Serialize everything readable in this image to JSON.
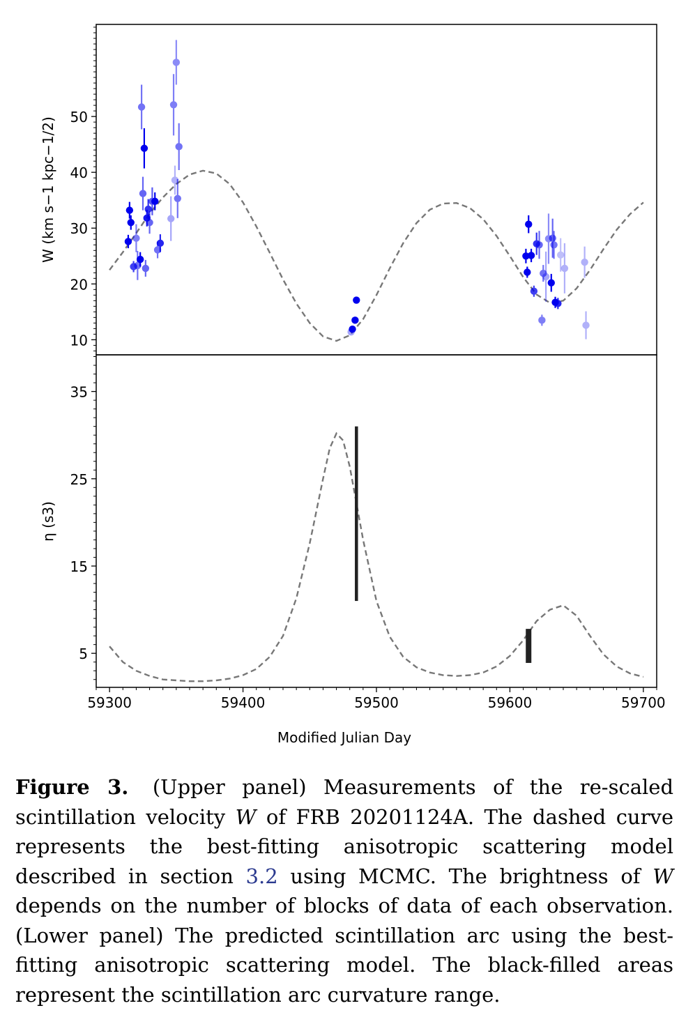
{
  "figure": {
    "caption": {
      "label": "Figure 3.",
      "part1": "(Upper panel) Measurements of the re-scaled scintillation velocity",
      "var1": "W",
      "part2": "of FRB 20201124A. The dashed curve represents the best-fitting anisotropic scattering model described in section",
      "ref": "3.2",
      "part3": "using MCMC. The brightness of",
      "var2": "W",
      "part4": "depends on the number of blocks of data of each observation. (Lower panel) The predicted scintillation arc using the best-fitting anisotropic scattering model. The black-filled areas represent the scintillation arc curvature range."
    }
  },
  "chart_data": [
    {
      "type": "scatter",
      "panel": "upper",
      "title": "",
      "ylabel": "W (km s−1 kpc−1/2)",
      "xlabel": "",
      "xlim": [
        59290,
        59710
      ],
      "ylim": [
        7.3,
        66.5
      ],
      "yticks": [
        10,
        20,
        30,
        40,
        50
      ],
      "marker_color": "#0000ee",
      "model_color": "#777777",
      "model_curve": {
        "name": "",
        "x": [
          59300,
          59310,
          59320,
          59330,
          59340,
          59350,
          59360,
          59370,
          59380,
          59390,
          59400,
          59410,
          59420,
          59430,
          59440,
          59450,
          59460,
          59470,
          59480,
          59490,
          59500,
          59510,
          59520,
          59530,
          59540,
          59550,
          59560,
          59570,
          59580,
          59590,
          59600,
          59610,
          59620,
          59630,
          59640,
          59650,
          59660,
          59670,
          59680,
          59690,
          59700
        ],
        "y": [
          22.5,
          25.7,
          29.1,
          32.6,
          35.5,
          37.9,
          39.6,
          40.3,
          39.8,
          37.9,
          34.6,
          30.3,
          25.6,
          20.8,
          16.5,
          13.0,
          10.6,
          9.8,
          10.8,
          13.7,
          18.0,
          22.8,
          27.3,
          30.9,
          33.3,
          34.4,
          34.5,
          33.6,
          31.6,
          28.6,
          25.0,
          21.2,
          18.1,
          16.6,
          17.0,
          19.2,
          22.5,
          26.2,
          29.7,
          32.5,
          34.6
        ]
      },
      "points": [
        {
          "x": 59314,
          "y": 27.6,
          "err": 1.2,
          "alpha": 1.0
        },
        {
          "x": 59315,
          "y": 33.2,
          "err": 1.5,
          "alpha": 1.0
        },
        {
          "x": 59316,
          "y": 31.0,
          "err": 1.3,
          "alpha": 1.0
        },
        {
          "x": 59318,
          "y": 23.1,
          "err": 1.0,
          "alpha": 0.75
        },
        {
          "x": 59320,
          "y": 28.2,
          "err": 2.5,
          "alpha": 0.5
        },
        {
          "x": 59321,
          "y": 23.3,
          "err": 2.6,
          "alpha": 0.55
        },
        {
          "x": 59323,
          "y": 24.4,
          "err": 1.3,
          "alpha": 1.0
        },
        {
          "x": 59324,
          "y": 51.7,
          "err": 4.0,
          "alpha": 0.55
        },
        {
          "x": 59325,
          "y": 36.2,
          "err": 3.0,
          "alpha": 0.6
        },
        {
          "x": 59326,
          "y": 44.3,
          "err": 3.6,
          "alpha": 1.0
        },
        {
          "x": 59327,
          "y": 22.8,
          "err": 1.5,
          "alpha": 0.6
        },
        {
          "x": 59328,
          "y": 31.8,
          "err": 1.5,
          "alpha": 0.9
        },
        {
          "x": 59329,
          "y": 33.4,
          "err": 1.8,
          "alpha": 0.8
        },
        {
          "x": 59330,
          "y": 31.0,
          "err": 2.0,
          "alpha": 0.6
        },
        {
          "x": 59332,
          "y": 34.8,
          "err": 2.5,
          "alpha": 0.65
        },
        {
          "x": 59334,
          "y": 34.8,
          "err": 1.6,
          "alpha": 1.0
        },
        {
          "x": 59336,
          "y": 26.1,
          "err": 1.5,
          "alpha": 0.55
        },
        {
          "x": 59338,
          "y": 27.3,
          "err": 1.6,
          "alpha": 0.85
        },
        {
          "x": 59346,
          "y": 31.7,
          "err": 4.0,
          "alpha": 0.35
        },
        {
          "x": 59348,
          "y": 52.1,
          "err": 5.5,
          "alpha": 0.5
        },
        {
          "x": 59349,
          "y": 38.6,
          "err": 2.6,
          "alpha": 0.3
        },
        {
          "x": 59350,
          "y": 59.7,
          "err": 4.0,
          "alpha": 0.45
        },
        {
          "x": 59351,
          "y": 35.3,
          "err": 3.5,
          "alpha": 0.55
        },
        {
          "x": 59352,
          "y": 44.6,
          "err": 4.2,
          "alpha": 0.55
        },
        {
          "x": 59481,
          "y": 11.4,
          "err": 0.5,
          "alpha": 0.35
        },
        {
          "x": 59482,
          "y": 11.9,
          "err": 0.6,
          "alpha": 1.0
        },
        {
          "x": 59484,
          "y": 13.5,
          "err": 0.6,
          "alpha": 1.0
        },
        {
          "x": 59485,
          "y": 17.1,
          "err": 0.6,
          "alpha": 1.0
        },
        {
          "x": 59612,
          "y": 25.0,
          "err": 1.3,
          "alpha": 1.0
        },
        {
          "x": 59613,
          "y": 22.1,
          "err": 1.0,
          "alpha": 1.0
        },
        {
          "x": 59614,
          "y": 30.7,
          "err": 1.6,
          "alpha": 1.0
        },
        {
          "x": 59616,
          "y": 25.1,
          "err": 1.2,
          "alpha": 1.0
        },
        {
          "x": 59618,
          "y": 18.7,
          "err": 1.0,
          "alpha": 0.75
        },
        {
          "x": 59620,
          "y": 27.2,
          "err": 2.0,
          "alpha": 0.8
        },
        {
          "x": 59622,
          "y": 27.0,
          "err": 2.5,
          "alpha": 0.6
        },
        {
          "x": 59624,
          "y": 13.5,
          "err": 1.0,
          "alpha": 0.5
        },
        {
          "x": 59625,
          "y": 21.9,
          "err": 1.5,
          "alpha": 0.55
        },
        {
          "x": 59627,
          "y": 21.3,
          "err": 4.5,
          "alpha": 0.35
        },
        {
          "x": 59629,
          "y": 28.1,
          "err": 4.5,
          "alpha": 0.45
        },
        {
          "x": 59631,
          "y": 20.2,
          "err": 1.6,
          "alpha": 1.0
        },
        {
          "x": 59632,
          "y": 28.2,
          "err": 3.5,
          "alpha": 0.6
        },
        {
          "x": 59633,
          "y": 27.0,
          "err": 2.5,
          "alpha": 0.55
        },
        {
          "x": 59634,
          "y": 16.7,
          "err": 1.0,
          "alpha": 1.0
        },
        {
          "x": 59636,
          "y": 16.5,
          "err": 1.0,
          "alpha": 0.85
        },
        {
          "x": 59638,
          "y": 25.2,
          "err": 3.0,
          "alpha": 0.25
        },
        {
          "x": 59641,
          "y": 22.8,
          "err": 4.5,
          "alpha": 0.3
        },
        {
          "x": 59656,
          "y": 23.9,
          "err": 2.8,
          "alpha": 0.3
        },
        {
          "x": 59657,
          "y": 12.6,
          "err": 2.5,
          "alpha": 0.3
        }
      ]
    },
    {
      "type": "line",
      "panel": "lower",
      "title": "",
      "ylabel": "η (s3)",
      "xlabel": "Modified Julian Day",
      "xlim": [
        59290,
        59710
      ],
      "ylim": [
        1.1,
        39.2
      ],
      "yticks": [
        5,
        15,
        25,
        35
      ],
      "xticks": [
        59300,
        59400,
        59500,
        59600,
        59700
      ],
      "model_curve": {
        "name": "",
        "x": [
          59300,
          59310,
          59320,
          59330,
          59340,
          59350,
          59360,
          59370,
          59380,
          59390,
          59400,
          59410,
          59420,
          59430,
          59440,
          59450,
          59460,
          59465,
          59470,
          59475,
          59480,
          59490,
          59500,
          59510,
          59520,
          59530,
          59540,
          59550,
          59560,
          59570,
          59580,
          59590,
          59600,
          59610,
          59620,
          59630,
          59640,
          59650,
          59660,
          59670,
          59680,
          59690,
          59700
        ],
        "y": [
          5.8,
          4.0,
          3.0,
          2.4,
          2.0,
          1.9,
          1.8,
          1.8,
          1.9,
          2.1,
          2.5,
          3.2,
          4.6,
          7.0,
          11.3,
          17.6,
          25.0,
          28.5,
          30.2,
          29.4,
          26.4,
          18.0,
          11.0,
          6.9,
          4.6,
          3.4,
          2.8,
          2.5,
          2.4,
          2.5,
          2.8,
          3.5,
          4.7,
          6.5,
          8.7,
          10.0,
          10.5,
          9.3,
          7.0,
          4.9,
          3.5,
          2.7,
          2.3
        ]
      },
      "arc_ranges": [
        {
          "x": 59485,
          "y_min": 11.0,
          "y_max": 31.0
        },
        {
          "x": 59614,
          "y_min": 3.9,
          "y_max": 7.8
        }
      ]
    }
  ]
}
